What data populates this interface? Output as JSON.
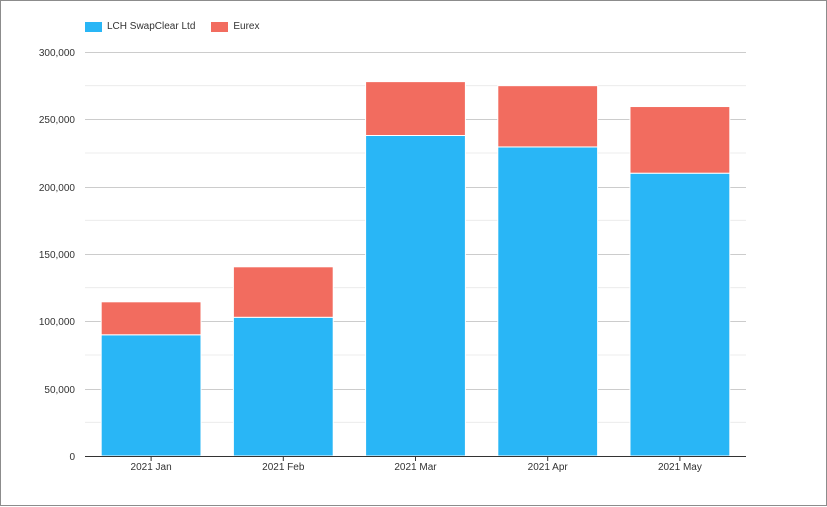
{
  "chart_data": {
    "type": "bar",
    "stacked": true,
    "categories": [
      "2021 Jan",
      "2021 Feb",
      "2021 Mar",
      "2021 Apr",
      "2021 May"
    ],
    "series": [
      {
        "name": "LCH SwapClear Ltd",
        "color": "#29b6f6",
        "values": [
          90000,
          103000,
          238000,
          229500,
          210000
        ]
      },
      {
        "name": "Eurex",
        "color": "#f26c5f",
        "values": [
          24500,
          37500,
          40000,
          45500,
          49500
        ]
      }
    ],
    "ylim": [
      0,
      300000
    ],
    "yticks": [
      "0",
      "50,000",
      "100,000",
      "150,000",
      "200,000",
      "250,000",
      "300,000"
    ],
    "grid": true,
    "legend_position": "top-left",
    "title": "",
    "xlabel": "",
    "ylabel": ""
  }
}
